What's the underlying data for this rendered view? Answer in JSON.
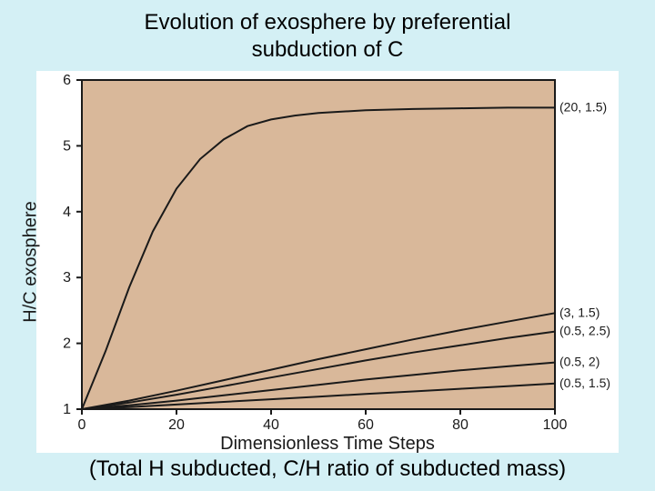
{
  "title_line1": "Evolution of exosphere by preferential",
  "title_line2": "subduction of C",
  "caption": "(Total H subducted, C/H ratio of subducted mass)",
  "chart": {
    "type": "line",
    "background_color": "#ffffff",
    "plot_fill_color": "#d9b89a",
    "axis_line_color": "#1a1a1a",
    "axis_line_width": 2,
    "curve_color": "#1a1a1a",
    "curve_width": 2,
    "text_color": "#1a1a1a",
    "tick_fontsize": 16,
    "label_fontsize": 20,
    "annotation_fontsize": 14,
    "annotation_bg": "#ffffff",
    "xlabel": "Dimensionless Time Steps",
    "ylabel": "H/C exosphere",
    "xlim": [
      0,
      100
    ],
    "ylim": [
      1,
      6
    ],
    "xticks": [
      0,
      20,
      40,
      60,
      80,
      100
    ],
    "yticks": [
      1,
      2,
      3,
      4,
      5,
      6
    ],
    "tick_length": 6,
    "series": [
      {
        "label": "(20, 1.5)",
        "points": [
          [
            0,
            1.0
          ],
          [
            5,
            1.88
          ],
          [
            10,
            2.85
          ],
          [
            15,
            3.7
          ],
          [
            20,
            4.35
          ],
          [
            25,
            4.8
          ],
          [
            30,
            5.1
          ],
          [
            35,
            5.3
          ],
          [
            40,
            5.4
          ],
          [
            45,
            5.46
          ],
          [
            50,
            5.5
          ],
          [
            60,
            5.54
          ],
          [
            70,
            5.56
          ],
          [
            80,
            5.57
          ],
          [
            90,
            5.58
          ],
          [
            100,
            5.58
          ]
        ],
        "label_xy": [
          100,
          5.58
        ]
      },
      {
        "label": "(3, 1.5)",
        "points": [
          [
            0,
            1.0
          ],
          [
            10,
            1.13
          ],
          [
            20,
            1.28
          ],
          [
            30,
            1.44
          ],
          [
            40,
            1.6
          ],
          [
            50,
            1.76
          ],
          [
            60,
            1.91
          ],
          [
            70,
            2.06
          ],
          [
            80,
            2.2
          ],
          [
            90,
            2.33
          ],
          [
            100,
            2.46
          ]
        ],
        "label_xy": [
          100,
          2.46
        ]
      },
      {
        "label": "(0.5, 2.5)",
        "points": [
          [
            0,
            1.0
          ],
          [
            10,
            1.1
          ],
          [
            20,
            1.22
          ],
          [
            30,
            1.35
          ],
          [
            40,
            1.48
          ],
          [
            50,
            1.61
          ],
          [
            60,
            1.74
          ],
          [
            70,
            1.86
          ],
          [
            80,
            1.97
          ],
          [
            90,
            2.08
          ],
          [
            100,
            2.18
          ]
        ],
        "label_xy": [
          100,
          2.18
        ]
      },
      {
        "label": "(0.5, 2)",
        "points": [
          [
            0,
            1.0
          ],
          [
            10,
            1.06
          ],
          [
            20,
            1.13
          ],
          [
            30,
            1.21
          ],
          [
            40,
            1.29
          ],
          [
            50,
            1.37
          ],
          [
            60,
            1.45
          ],
          [
            70,
            1.52
          ],
          [
            80,
            1.59
          ],
          [
            90,
            1.65
          ],
          [
            100,
            1.71
          ]
        ],
        "label_xy": [
          100,
          1.71
        ]
      },
      {
        "label": "(0.5, 1.5)",
        "points": [
          [
            0,
            1.0
          ],
          [
            10,
            1.03
          ],
          [
            20,
            1.07
          ],
          [
            30,
            1.11
          ],
          [
            40,
            1.15
          ],
          [
            50,
            1.19
          ],
          [
            60,
            1.23
          ],
          [
            70,
            1.27
          ],
          [
            80,
            1.31
          ],
          [
            90,
            1.35
          ],
          [
            100,
            1.39
          ]
        ],
        "label_xy": [
          100,
          1.39
        ]
      }
    ]
  }
}
